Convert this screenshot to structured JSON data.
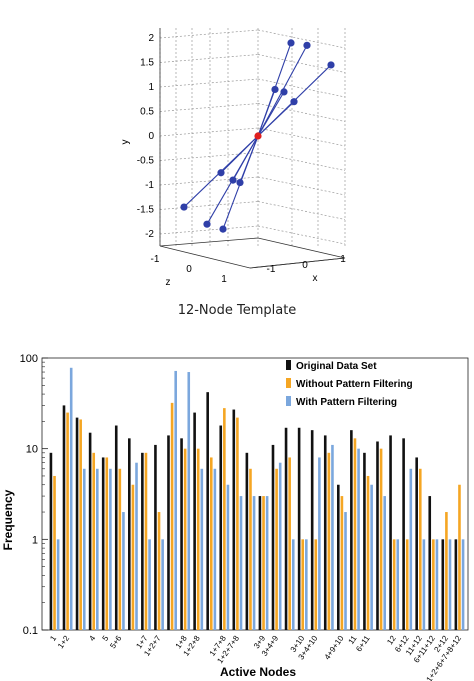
{
  "caption": "12-Node Template",
  "chart_data": [
    {
      "type": "scatter",
      "projection": "3d",
      "xlabel": "x",
      "ylabel": "y",
      "zlabel": "z",
      "x_ticks": [
        "-1",
        "0",
        "1"
      ],
      "y_ticks": [
        "-2",
        "-1.5",
        "-1",
        "-0.5",
        "0",
        "0.5",
        "1",
        "1.5",
        "2"
      ],
      "z_ticks": [
        "-1",
        "0",
        "1"
      ],
      "ylim": [
        -2,
        2
      ],
      "grid": true,
      "center": {
        "x": 0,
        "y": 0,
        "z": 0,
        "color": "#e02020"
      },
      "node_color": "#2f3fa8",
      "nodes_y": [
        1.9,
        1.85,
        1.45,
        0.95,
        0.9,
        0.7,
        -0.75,
        -0.9,
        -0.95,
        -1.45,
        -1.8,
        -1.9
      ]
    },
    {
      "type": "bar",
      "xlabel": "Active Nodes",
      "ylabel": "Frequency",
      "yscale": "log",
      "ylim": [
        0.1,
        100
      ],
      "y_ticks": [
        "0.1",
        "1",
        "10",
        "100"
      ],
      "legend_position": "top-right",
      "categories": [
        "1",
        "1+2",
        "",
        "4",
        "5",
        "5+6",
        "",
        "1+7",
        "1+2+7",
        "",
        "1+8",
        "1+2+8",
        "",
        "1+7+8",
        "1+2+7+8",
        "",
        "3+9",
        "3+4+9",
        "",
        "3+10",
        "3+4+10",
        "",
        "4+9+10",
        "11",
        "6+11",
        "",
        "12",
        "6+12",
        "11+12",
        "6+11+12",
        "2+12",
        "1+2+6+7+8+12"
      ],
      "series": [
        {
          "name": "Original Data Set",
          "color": "#111111",
          "values": [
            9,
            30,
            22,
            15,
            8,
            18,
            13,
            9,
            11,
            14,
            13,
            25,
            42,
            18,
            27,
            9,
            3,
            11,
            17,
            17,
            16,
            14,
            4,
            16,
            9,
            12,
            14,
            13,
            8,
            3,
            1,
            1
          ]
        },
        {
          "name": "Without Pattern Filtering",
          "color": "#f5a623",
          "values": [
            5,
            25,
            21,
            9,
            8,
            6,
            4,
            9,
            2,
            32,
            10,
            10,
            8,
            28,
            22,
            6,
            3,
            6,
            8,
            1,
            1,
            9,
            3,
            13,
            5,
            10,
            1,
            1,
            6,
            1,
            2,
            4
          ]
        },
        {
          "name": "With Pattern Filtering",
          "color": "#7ba7dd",
          "values": [
            1,
            78,
            6,
            6,
            6,
            2,
            7,
            1,
            1,
            72,
            70,
            6,
            6,
            4,
            3,
            3,
            3,
            7,
            1,
            1,
            8,
            11,
            2,
            10,
            4,
            3,
            1,
            6,
            1,
            1,
            1,
            1
          ]
        }
      ]
    }
  ]
}
